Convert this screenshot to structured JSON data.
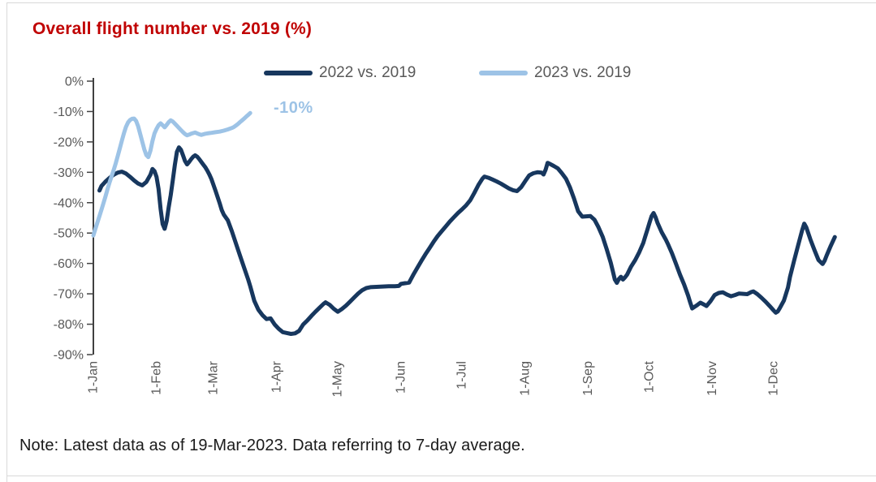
{
  "title": "Overall flight number vs. 2019 (%)",
  "note": "Note: Latest data as of 19-Mar-2023. Data referring to 7-day average.",
  "annotation": {
    "text": "-10%"
  },
  "colors": {
    "title": "#C00000",
    "axis": "#404040",
    "tick_label": "#595959",
    "legend_label": "#595959",
    "note_text": "#1A1A1A",
    "series_2022": "#17375E",
    "series_2023": "#9DC3E6",
    "annotation": "#9DC3E6",
    "border": "#D9D9D9",
    "background": "#FFFFFF"
  },
  "chart_data": {
    "type": "line",
    "title": "Overall flight number vs. 2019 (%)",
    "xlabel": "",
    "ylabel": "",
    "x_unit": "day_of_year",
    "x_tick_labels": [
      "1-Jan",
      "1-Feb",
      "1-Mar",
      "1-Apr",
      "1-May",
      "1-Jun",
      "1-Jul",
      "1-Aug",
      "1-Sep",
      "1-Oct",
      "1-Nov",
      "1-Dec"
    ],
    "x_tick_days": [
      1,
      32,
      60,
      91,
      121,
      152,
      182,
      213,
      244,
      274,
      305,
      335
    ],
    "y_tick_labels": [
      "0%",
      "-10%",
      "-20%",
      "-30%",
      "-40%",
      "-50%",
      "-60%",
      "-70%",
      "-80%",
      "-90%"
    ],
    "ylim": [
      -90,
      0
    ],
    "grid": false,
    "legend_position": "top",
    "annotation_text": "-10%",
    "series": [
      {
        "name": "2022 vs. 2019",
        "color": "#17375E",
        "width": 5,
        "points": [
          [
            4,
            -36
          ],
          [
            5,
            -34.5
          ],
          [
            7,
            -33
          ],
          [
            9,
            -31.8
          ],
          [
            11,
            -30.8
          ],
          [
            13,
            -30.1
          ],
          [
            15,
            -29.8
          ],
          [
            17,
            -30.4
          ],
          [
            19,
            -31.5
          ],
          [
            21,
            -32.7
          ],
          [
            23,
            -33.7
          ],
          [
            25,
            -34.3
          ],
          [
            27,
            -33.2
          ],
          [
            29,
            -30.8
          ],
          [
            30,
            -28.9
          ],
          [
            31,
            -29.6
          ],
          [
            32,
            -31.5
          ],
          [
            33,
            -35.5
          ],
          [
            34,
            -42
          ],
          [
            35,
            -47
          ],
          [
            36,
            -48.6
          ],
          [
            37,
            -46
          ],
          [
            38,
            -41.5
          ],
          [
            39,
            -37.5
          ],
          [
            40,
            -32.5
          ],
          [
            41,
            -27.5
          ],
          [
            42,
            -23.3
          ],
          [
            43,
            -21.8
          ],
          [
            44,
            -22.6
          ],
          [
            45,
            -24.4
          ],
          [
            46,
            -26.3
          ],
          [
            47,
            -27.4
          ],
          [
            48,
            -26.6
          ],
          [
            49,
            -25.7
          ],
          [
            50,
            -24.9
          ],
          [
            51,
            -24.4
          ],
          [
            52,
            -24.9
          ],
          [
            53,
            -25.7
          ],
          [
            54,
            -26.6
          ],
          [
            55,
            -27.5
          ],
          [
            56,
            -28.4
          ],
          [
            57,
            -29.5
          ],
          [
            58,
            -30.8
          ],
          [
            59,
            -32.3
          ],
          [
            60,
            -34.2
          ],
          [
            61,
            -36.1
          ],
          [
            62,
            -38.1
          ],
          [
            63,
            -40.2
          ],
          [
            64,
            -42.4
          ],
          [
            65,
            -43.9
          ],
          [
            67,
            -45.8
          ],
          [
            69,
            -49.4
          ],
          [
            71,
            -53.4
          ],
          [
            73,
            -57.4
          ],
          [
            75,
            -61.4
          ],
          [
            77,
            -65.3
          ],
          [
            78,
            -67.5
          ],
          [
            80,
            -72.3
          ],
          [
            82,
            -75.2
          ],
          [
            84,
            -77
          ],
          [
            86,
            -78.3
          ],
          [
            88,
            -78.1
          ],
          [
            90,
            -80.1
          ],
          [
            92,
            -81.5
          ],
          [
            94,
            -82.6
          ],
          [
            96,
            -82.9
          ],
          [
            98,
            -83.2
          ],
          [
            100,
            -83
          ],
          [
            102,
            -82.2
          ],
          [
            104,
            -80.1
          ],
          [
            106,
            -78.8
          ],
          [
            108,
            -77.3
          ],
          [
            110,
            -75.9
          ],
          [
            112,
            -74.6
          ],
          [
            114,
            -73.3
          ],
          [
            115,
            -72.8
          ],
          [
            117,
            -73.6
          ],
          [
            119,
            -74.9
          ],
          [
            121,
            -75.9
          ],
          [
            123,
            -75
          ],
          [
            125,
            -73.9
          ],
          [
            127,
            -72.6
          ],
          [
            129,
            -71.2
          ],
          [
            131,
            -69.9
          ],
          [
            133,
            -68.8
          ],
          [
            135,
            -68.1
          ],
          [
            137,
            -67.8
          ],
          [
            140,
            -67.7
          ],
          [
            143,
            -67.6
          ],
          [
            146,
            -67.5
          ],
          [
            149,
            -67.5
          ],
          [
            151,
            -67.4
          ],
          [
            152,
            -66.7
          ],
          [
            154,
            -66.5
          ],
          [
            156,
            -66.3
          ],
          [
            158,
            -63.8
          ],
          [
            160,
            -61.5
          ],
          [
            162,
            -59.2
          ],
          [
            164,
            -57
          ],
          [
            166,
            -55
          ],
          [
            168,
            -52.9
          ],
          [
            170,
            -51
          ],
          [
            172,
            -49.4
          ],
          [
            174,
            -47.8
          ],
          [
            176,
            -46.2
          ],
          [
            178,
            -44.8
          ],
          [
            180,
            -43.4
          ],
          [
            182,
            -42.2
          ],
          [
            184,
            -40.9
          ],
          [
            186,
            -39.2
          ],
          [
            188,
            -36.8
          ],
          [
            190,
            -34.2
          ],
          [
            192,
            -32.1
          ],
          [
            193,
            -31.4
          ],
          [
            195,
            -31.8
          ],
          [
            197,
            -32.4
          ],
          [
            199,
            -33
          ],
          [
            201,
            -33.7
          ],
          [
            203,
            -34.5
          ],
          [
            205,
            -35.3
          ],
          [
            207,
            -35.9
          ],
          [
            209,
            -36.2
          ],
          [
            211,
            -34.9
          ],
          [
            213,
            -32.9
          ],
          [
            215,
            -31
          ],
          [
            217,
            -30.3
          ],
          [
            219,
            -30
          ],
          [
            221,
            -30.1
          ],
          [
            222,
            -30.7
          ],
          [
            223,
            -29.2
          ],
          [
            224,
            -26.9
          ],
          [
            225,
            -27.2
          ],
          [
            227,
            -27.9
          ],
          [
            229,
            -28.7
          ],
          [
            231,
            -30.3
          ],
          [
            233,
            -32.1
          ],
          [
            235,
            -35
          ],
          [
            237,
            -38.7
          ],
          [
            239,
            -42.8
          ],
          [
            241,
            -44.6
          ],
          [
            243,
            -44.5
          ],
          [
            245,
            -44.4
          ],
          [
            247,
            -45.6
          ],
          [
            249,
            -48.1
          ],
          [
            251,
            -51.2
          ],
          [
            253,
            -55.3
          ],
          [
            255,
            -59.8
          ],
          [
            256,
            -62.5
          ],
          [
            257,
            -65.3
          ],
          [
            258,
            -66.4
          ],
          [
            259,
            -65.1
          ],
          [
            260,
            -64.4
          ],
          [
            261,
            -65.3
          ],
          [
            262,
            -64.6
          ],
          [
            263,
            -63.7
          ],
          [
            265,
            -61
          ],
          [
            267,
            -58.9
          ],
          [
            269,
            -56.3
          ],
          [
            271,
            -53.2
          ],
          [
            272,
            -51
          ],
          [
            273,
            -48.9
          ],
          [
            274,
            -46.6
          ],
          [
            275,
            -44.5
          ],
          [
            276,
            -43.4
          ],
          [
            277,
            -44.8
          ],
          [
            278,
            -46.7
          ],
          [
            280,
            -49.7
          ],
          [
            282,
            -52.1
          ],
          [
            283,
            -53.5
          ],
          [
            285,
            -56.6
          ],
          [
            287,
            -60.1
          ],
          [
            289,
            -63.7
          ],
          [
            291,
            -66.9
          ],
          [
            293,
            -70.6
          ],
          [
            294,
            -72.8
          ],
          [
            295,
            -74.8
          ],
          [
            297,
            -73.9
          ],
          [
            299,
            -72.9
          ],
          [
            301,
            -73.6
          ],
          [
            302,
            -74
          ],
          [
            304,
            -72.4
          ],
          [
            306,
            -70.4
          ],
          [
            308,
            -69.7
          ],
          [
            310,
            -69.5
          ],
          [
            312,
            -70.2
          ],
          [
            314,
            -70.8
          ],
          [
            316,
            -70.4
          ],
          [
            318,
            -69.9
          ],
          [
            320,
            -70
          ],
          [
            322,
            -70.1
          ],
          [
            324,
            -69.4
          ],
          [
            325,
            -69.2
          ],
          [
            327,
            -70.1
          ],
          [
            329,
            -71.3
          ],
          [
            331,
            -72.6
          ],
          [
            333,
            -74
          ],
          [
            335,
            -75.5
          ],
          [
            336,
            -76.2
          ],
          [
            337,
            -75.8
          ],
          [
            338,
            -74.7
          ],
          [
            340,
            -72.2
          ],
          [
            342,
            -67.9
          ],
          [
            343,
            -64.4
          ],
          [
            345,
            -59.1
          ],
          [
            347,
            -54
          ],
          [
            349,
            -49
          ],
          [
            350,
            -46.9
          ],
          [
            351,
            -48.1
          ],
          [
            353,
            -52.1
          ],
          [
            355,
            -55.6
          ],
          [
            357,
            -58.9
          ],
          [
            359,
            -60.2
          ],
          [
            360,
            -59.1
          ],
          [
            361,
            -57.4
          ],
          [
            363,
            -54.2
          ],
          [
            365,
            -51.3
          ]
        ]
      },
      {
        "name": "2023 vs. 2019",
        "color": "#9DC3E6",
        "width": 5,
        "points": [
          [
            1,
            -50.8
          ],
          [
            2,
            -48.6
          ],
          [
            3,
            -46.5
          ],
          [
            4,
            -44.4
          ],
          [
            5,
            -42.3
          ],
          [
            6,
            -40.1
          ],
          [
            7,
            -37.8
          ],
          [
            8,
            -35.4
          ],
          [
            9,
            -33.2
          ],
          [
            10,
            -31.2
          ],
          [
            11,
            -29.2
          ],
          [
            12,
            -27
          ],
          [
            13,
            -24.6
          ],
          [
            14,
            -22.1
          ],
          [
            15,
            -19.6
          ],
          [
            16,
            -17.2
          ],
          [
            17,
            -15.1
          ],
          [
            18,
            -13.6
          ],
          [
            19,
            -12.8
          ],
          [
            20,
            -12.4
          ],
          [
            21,
            -12.3
          ],
          [
            22,
            -13.1
          ],
          [
            23,
            -14.9
          ],
          [
            24,
            -17.4
          ],
          [
            25,
            -19.9
          ],
          [
            26,
            -22.4
          ],
          [
            27,
            -24.3
          ],
          [
            28,
            -25
          ],
          [
            29,
            -22.9
          ],
          [
            30,
            -19.7
          ],
          [
            31,
            -17.2
          ],
          [
            32,
            -15.7
          ],
          [
            33,
            -14.5
          ],
          [
            34,
            -13.9
          ],
          [
            35,
            -14.5
          ],
          [
            36,
            -15.2
          ],
          [
            37,
            -14.4
          ],
          [
            38,
            -13.5
          ],
          [
            39,
            -12.9
          ],
          [
            40,
            -13.3
          ],
          [
            41,
            -14
          ],
          [
            42,
            -14.7
          ],
          [
            43,
            -15.4
          ],
          [
            44,
            -16.1
          ],
          [
            45,
            -16.8
          ],
          [
            46,
            -17.4
          ],
          [
            47,
            -17.8
          ],
          [
            48,
            -17.6
          ],
          [
            49,
            -17.3
          ],
          [
            50,
            -17.1
          ],
          [
            51,
            -16.9
          ],
          [
            52,
            -17.2
          ],
          [
            53,
            -17.5
          ],
          [
            54,
            -17.7
          ],
          [
            55,
            -17.5
          ],
          [
            56,
            -17.3
          ],
          [
            57,
            -17.2
          ],
          [
            58,
            -17.1
          ],
          [
            59,
            -17
          ],
          [
            61,
            -16.8
          ],
          [
            63,
            -16.6
          ],
          [
            65,
            -16.3
          ],
          [
            67,
            -15.9
          ],
          [
            69,
            -15.4
          ],
          [
            70,
            -15.1
          ],
          [
            71,
            -14.6
          ],
          [
            72,
            -14.1
          ],
          [
            73,
            -13.5
          ],
          [
            74,
            -12.9
          ],
          [
            75,
            -12.3
          ],
          [
            76,
            -11.7
          ],
          [
            77,
            -11.1
          ],
          [
            78,
            -10.5
          ]
        ]
      }
    ]
  }
}
